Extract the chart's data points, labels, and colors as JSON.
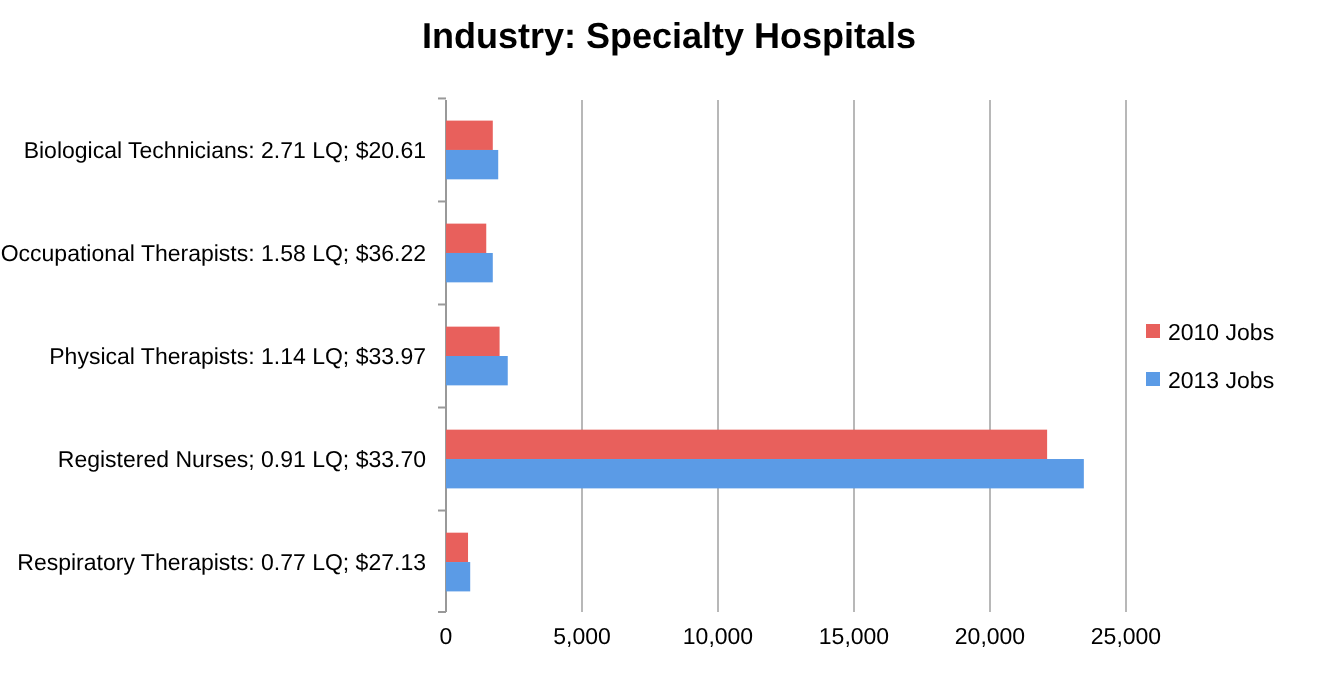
{
  "chart_data": {
    "type": "bar",
    "orientation": "horizontal",
    "title": "Industry: Specialty Hospitals",
    "categories": [
      "Biological Technicians: 2.71 LQ; $20.61",
      "Occupational Therapists: 1.58 LQ; $36.22",
      "Physical Therapists: 1.14 LQ; $33.97",
      "Registered Nurses; 0.91 LQ; $33.70",
      "Respiratory Therapists: 0.77 LQ; $27.13"
    ],
    "series": [
      {
        "name": "2010 Jobs",
        "color": "#e8605c",
        "values": [
          1720,
          1480,
          1970,
          22100,
          810
        ]
      },
      {
        "name": "2013 Jobs",
        "color": "#5b9be6",
        "values": [
          1920,
          1720,
          2270,
          23450,
          890
        ]
      }
    ],
    "xlim": [
      0,
      25000
    ],
    "xticks": [
      {
        "value": 0,
        "label": "0"
      },
      {
        "value": 5000,
        "label": "5,000"
      },
      {
        "value": 10000,
        "label": "10,000"
      },
      {
        "value": 15000,
        "label": "15,000"
      },
      {
        "value": 20000,
        "label": "20,000"
      },
      {
        "value": 25000,
        "label": "25,000"
      }
    ],
    "grid": "x",
    "legend": "right"
  }
}
